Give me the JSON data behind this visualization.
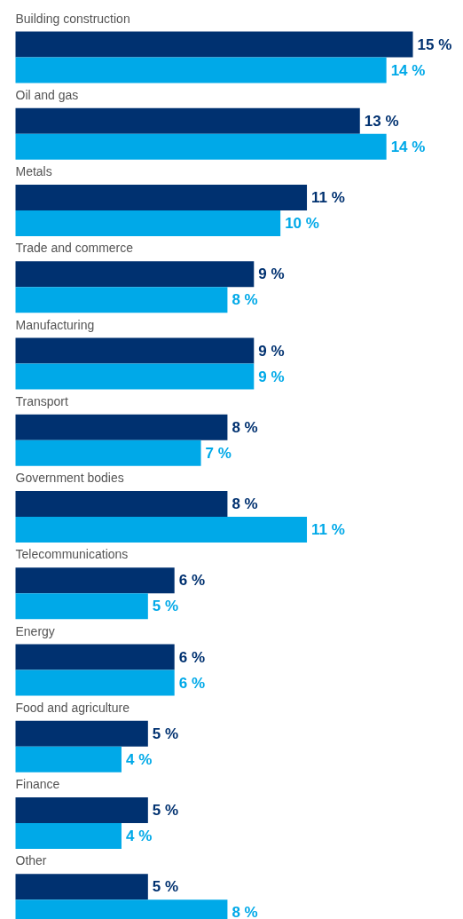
{
  "chart_data": {
    "type": "bar",
    "orientation": "horizontal",
    "categories": [
      "Building construction",
      "Oil and gas",
      "Metals",
      "Trade and commerce",
      "Manufacturing",
      "Transport",
      "Government bodies",
      "Telecommunications",
      "Energy",
      "Food and agriculture",
      "Finance",
      "Other"
    ],
    "series": [
      {
        "color": "#003170",
        "values": [
          15,
          13,
          11,
          9,
          9,
          8,
          8,
          6,
          6,
          5,
          5,
          5
        ],
        "value_labels": [
          "15 %",
          "13 %",
          "11 %",
          "9 %",
          "9 %",
          "8 %",
          "8 %",
          "6 %",
          "6 %",
          "5 %",
          "5 %",
          "5 %"
        ]
      },
      {
        "color": "#00a9e8",
        "values": [
          14,
          14,
          10,
          8,
          9,
          7,
          11,
          5,
          6,
          4,
          4,
          8
        ],
        "value_labels": [
          "14 %",
          "14 %",
          "10 %",
          "8 %",
          "9 %",
          "7 %",
          "11 %",
          "5 %",
          "6 %",
          "4 %",
          "4 %",
          "8 %"
        ]
      }
    ]
  }
}
